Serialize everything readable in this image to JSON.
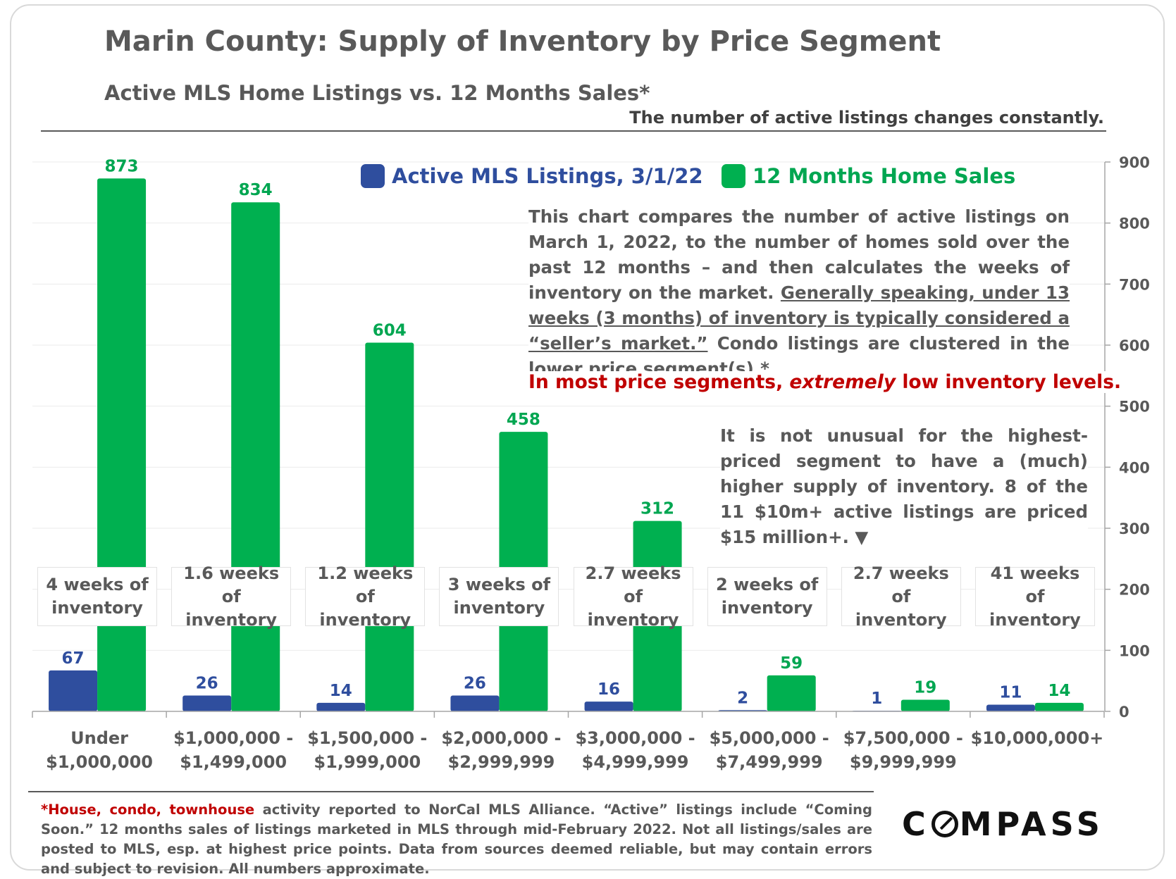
{
  "title": "Marin County: Supply of Inventory by Price Segment",
  "subtitle": "Active MLS Home Listings vs. 12 Months Sales*",
  "note": "The number of active listings changes constantly.",
  "legend": {
    "active": "Active MLS Listings, 3/1/22",
    "sales": "12 Months Home Sales"
  },
  "description": {
    "part1": "This chart compares the number of active listings on March 1, 2022, to the number of homes sold over the past 12 months – and then calculates the weeks of inventory on the market.",
    "underlined": "Generally speaking, under 13 weeks (3 months) of inventory is typically considered a “seller’s market.”",
    "part2": "Condo listings are clustered in the lower price segment(s).*"
  },
  "highlight": {
    "before": "In most price segments,",
    "emphasis": "extremely",
    "after": "low inventory levels."
  },
  "side_note": "It is not unusual for the highest-priced segment to have a (much) higher supply of inventory. 8 of the 11 $10m+ active listings are priced $15 million+. ▼",
  "weeks_labels": [
    "4 weeks of\ninventory",
    "1.6 weeks of\ninventory",
    "1.2 weeks of\ninventory",
    "3 weeks of\ninventory",
    "2.7 weeks of\ninventory",
    "2 weeks of\ninventory",
    "2.7 weeks\nof inventory",
    "41 weeks of\ninventory"
  ],
  "footnote": {
    "red": "House, condo, townhouse",
    "prefix": "*",
    "text": "activity reported to NorCal MLS Alliance. “Active” listings include “Coming Soon.” 12 months sales of listings marketed in MLS through mid-February 2022. Not all listings/sales are posted to MLS, esp. at highest price points. Data from sources deemed reliable, but may contain errors and subject to revision.  All numbers approximate."
  },
  "logo": {
    "pre": "C",
    "post": "MPASS"
  },
  "colors": {
    "active": "#2f4e9e",
    "sales": "#00b050",
    "sales_label": "#00a651",
    "highlight": "#c00000"
  },
  "chart_data": {
    "type": "bar",
    "categories": [
      [
        "Under",
        "$1,000,000"
      ],
      [
        "$1,000,000 -",
        "$1,499,000"
      ],
      [
        "$1,500,000 -",
        "$1,999,000"
      ],
      [
        "$2,000,000 -",
        "$2,999,999"
      ],
      [
        "$3,000,000 -",
        "$4,999,999"
      ],
      [
        "$5,000,000 -",
        "$7,499,999"
      ],
      [
        "$7,500,000 -",
        "$9,999,999"
      ],
      [
        "$10,000,000+"
      ]
    ],
    "series": [
      {
        "name": "Active MLS Listings, 3/1/22",
        "values": [
          67,
          26,
          14,
          26,
          16,
          2,
          1,
          11
        ]
      },
      {
        "name": "12 Months Home Sales",
        "values": [
          873,
          834,
          604,
          458,
          312,
          59,
          19,
          14
        ]
      }
    ],
    "ylim": [
      0,
      900
    ],
    "yticks": [
      0,
      100,
      200,
      300,
      400,
      500,
      600,
      700,
      800,
      900
    ],
    "y_axis_side": "right",
    "grid": true,
    "legend_position": "top"
  }
}
